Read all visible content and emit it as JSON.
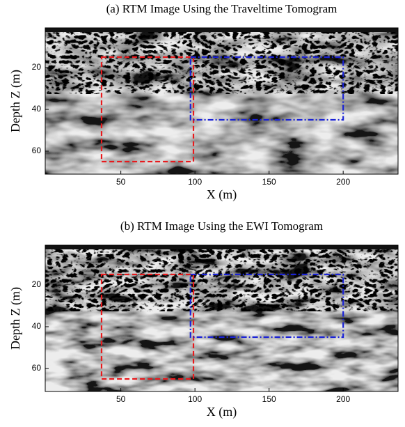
{
  "chart_data": [
    {
      "type": "image",
      "title": "(a) RTM Image Using the Traveltime Tomogram",
      "xlabel": "X (m)",
      "ylabel": "Depth Z (m)",
      "xlim": [
        -1,
        237
      ],
      "ylim": [
        1,
        71
      ],
      "xticks": [
        50,
        100,
        150,
        200
      ],
      "yticks": [
        20,
        40,
        60
      ],
      "y_inverted": true,
      "boxes": [
        {
          "color": "#e8191c",
          "style": "dashed",
          "x": [
            37,
            99
          ],
          "y": [
            15,
            65
          ]
        },
        {
          "color": "#1a22d6",
          "style": "dashdot",
          "x": [
            97,
            200
          ],
          "y": [
            15,
            45
          ]
        }
      ]
    },
    {
      "type": "image",
      "title": "(b) RTM Image Using the EWI Tomogram",
      "xlabel": "X (m)",
      "ylabel": "Depth Z (m)",
      "xlim": [
        -1,
        237
      ],
      "ylim": [
        1,
        71
      ],
      "xticks": [
        50,
        100,
        150,
        200
      ],
      "yticks": [
        20,
        40,
        60
      ],
      "y_inverted": true,
      "boxes": [
        {
          "color": "#e8191c",
          "style": "dashed",
          "x": [
            37,
            99
          ],
          "y": [
            15,
            65
          ]
        },
        {
          "color": "#1a22d6",
          "style": "dashdot",
          "x": [
            97,
            200
          ],
          "y": [
            15,
            45
          ]
        }
      ]
    }
  ]
}
